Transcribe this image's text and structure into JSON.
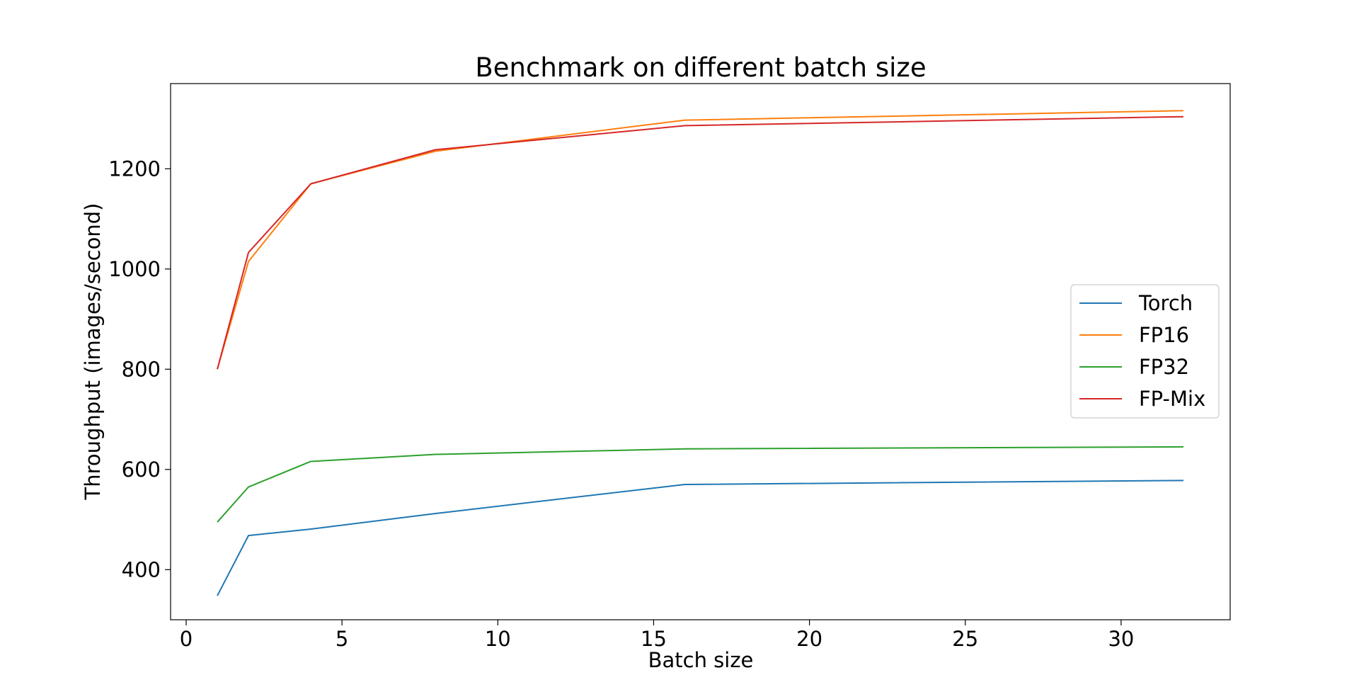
{
  "chart_data": {
    "type": "line",
    "title": "Benchmark on different batch size",
    "xlabel": "Batch size",
    "ylabel": "Throughput (images/second)",
    "x": [
      1,
      2,
      4,
      8,
      16,
      32
    ],
    "xlim": [
      -0.5,
      33.5
    ],
    "ylim": [
      300,
      1370
    ],
    "xticks": [
      0,
      5,
      10,
      15,
      20,
      25,
      30
    ],
    "yticks": [
      400,
      600,
      800,
      1000,
      1200
    ],
    "grid": false,
    "legend_position": "center-right",
    "series": [
      {
        "name": "Torch",
        "color": "#1f77b4",
        "values": [
          348,
          468,
          481,
          512,
          570,
          578
        ]
      },
      {
        "name": "FP16",
        "color": "#ff7f0e",
        "values": [
          800,
          1015,
          1170,
          1235,
          1297,
          1316
        ]
      },
      {
        "name": "FP32",
        "color": "#2ca02c",
        "values": [
          495,
          565,
          616,
          630,
          641,
          645
        ]
      },
      {
        "name": "FP-Mix",
        "color": "#d62728",
        "values": [
          800,
          1033,
          1170,
          1238,
          1286,
          1304
        ]
      }
    ]
  }
}
